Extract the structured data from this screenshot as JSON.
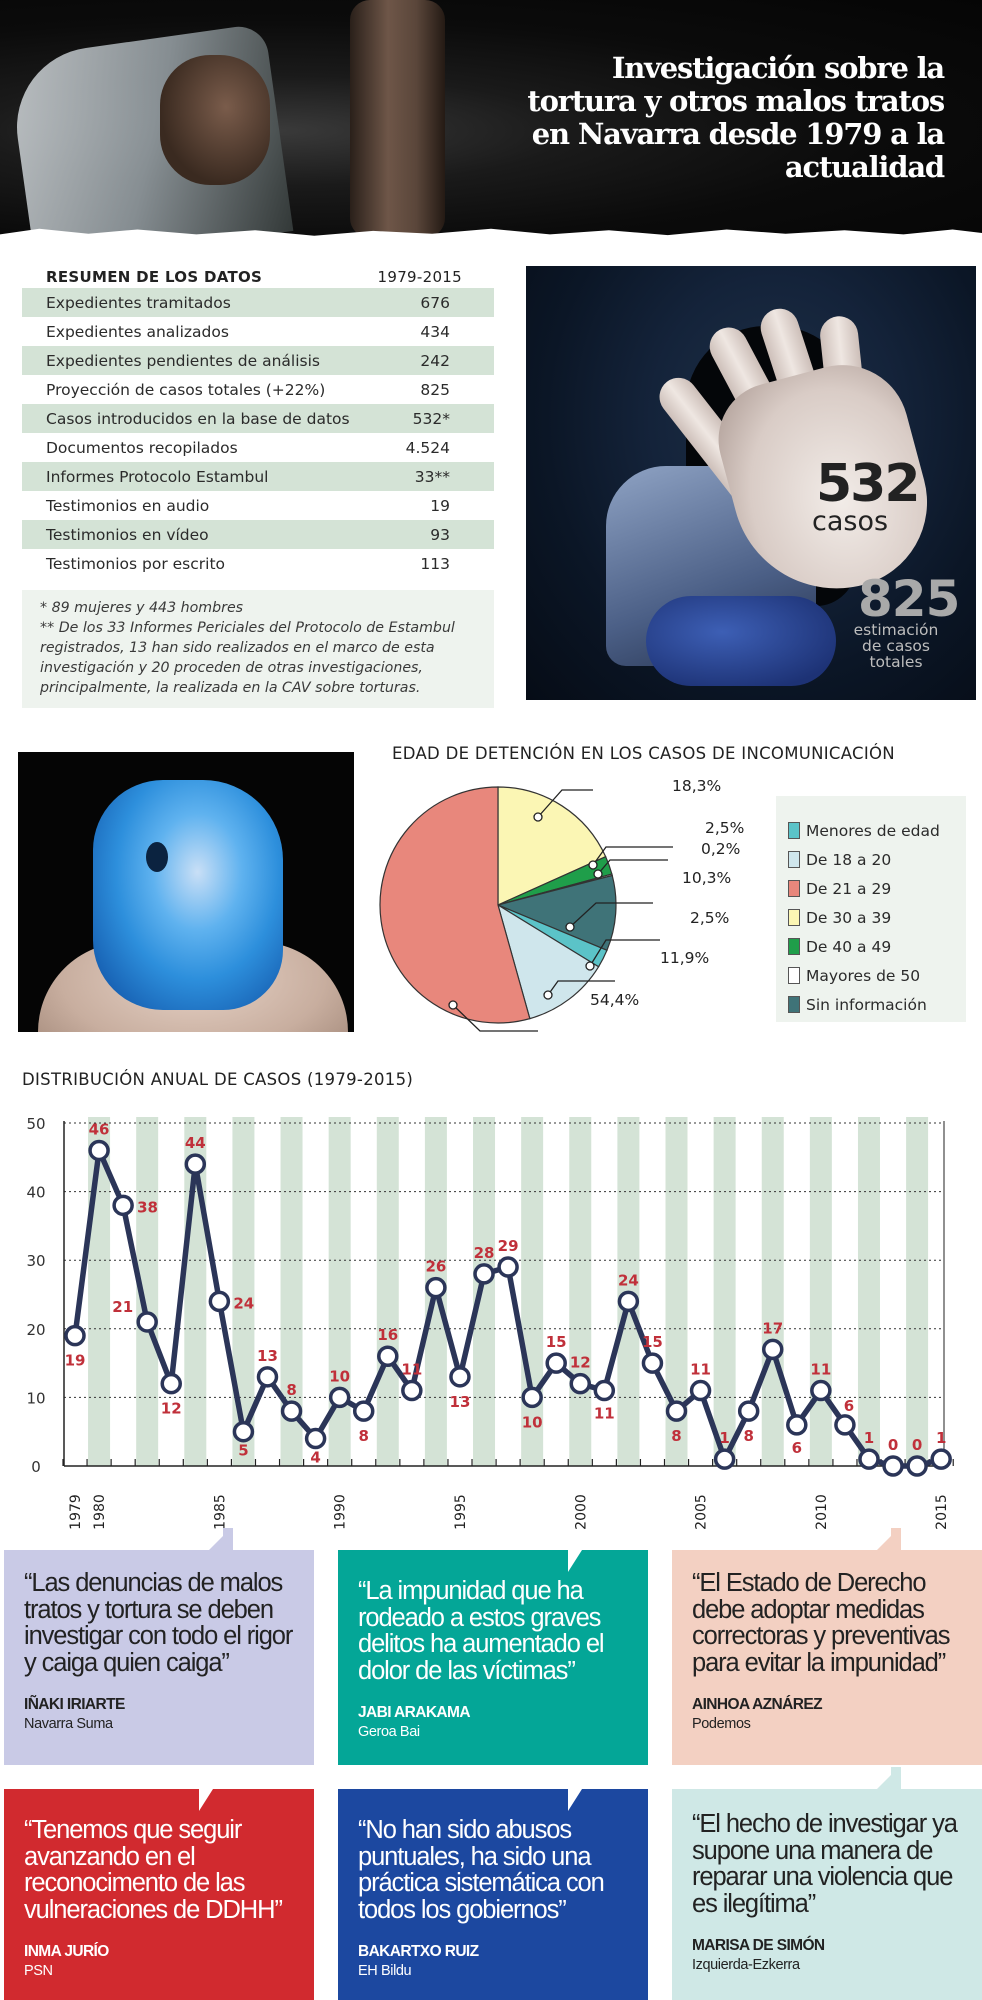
{
  "header": {
    "title": "Investigación sobre la tortura y otros malos tratos en Navarra desde 1979 a la actualidad"
  },
  "summary": {
    "title": "RESUMEN DE LOS DATOS",
    "period": "1979-2015",
    "rows": [
      {
        "label": "Expedientes tramitados",
        "value": "676"
      },
      {
        "label": "Expedientes analizados",
        "value": "434"
      },
      {
        "label": "Expedientes pendientes de análisis",
        "value": "242"
      },
      {
        "label": "Proyección de casos totales (+22%)",
        "value": "825"
      },
      {
        "label": "Casos introducidos en la base de datos",
        "value": "532*"
      },
      {
        "label": "Documentos recopilados",
        "value": "4.524"
      },
      {
        "label": "Informes Protocolo Estambul",
        "value": "33**"
      },
      {
        "label": "Testimonios en audio",
        "value": "19"
      },
      {
        "label": "Testimonios en vídeo",
        "value": "93"
      },
      {
        "label": "Testimonios por escrito",
        "value": "113"
      }
    ],
    "notes": [
      "* 89 mujeres y 443 hombres",
      "** De los 33 Informes Periciales del Protocolo de Estambul registrados, 13 han sido realizados en el marco de esta investigación y 20 proceden de otras investigaciones, principalmente, la realizada en la CAV sobre torturas."
    ]
  },
  "highlight": {
    "cases_number": "532",
    "cases_label": "casos",
    "estimate_number": "825",
    "estimate_label": "estimación de casos totales"
  },
  "colors": {
    "table_shade": "#d4e3d6",
    "line": "#2b3558",
    "label_red": "#c0303a",
    "band": "#d4e3d6"
  },
  "chart_data": [
    {
      "type": "pie",
      "title": "EDAD DE DETENCIÓN EN LOS CASOS DE INCOMUNICACIÓN",
      "legend_position": "right",
      "slices": [
        {
          "label": "De 30 a 39",
          "value": 18.3,
          "display": "18,3%",
          "color": "#fbf6b4"
        },
        {
          "label": "De 40 a 49",
          "value": 2.5,
          "display": "2,5%",
          "color": "#1f9e4a"
        },
        {
          "label": "Mayores de 50",
          "value": 0.2,
          "display": "0,2%",
          "color": "#ffffff"
        },
        {
          "label": "Sin información",
          "value": 10.3,
          "display": "10,3%",
          "color": "#3f7378"
        },
        {
          "label": "Menores de edad",
          "value": 2.5,
          "display": "2,5%",
          "color": "#5bc3c8"
        },
        {
          "label": "De 18 a 20",
          "value": 11.9,
          "display": "11,9%",
          "color": "#cfe6ec"
        },
        {
          "label": "De 21 a 29",
          "value": 54.4,
          "display": "54,4%",
          "color": "#e8877c"
        }
      ],
      "legend": [
        {
          "label": "Menores de edad",
          "color": "#5bc3c8"
        },
        {
          "label": "De 18 a 20",
          "color": "#cfe6ec"
        },
        {
          "label": "De 21 a 29",
          "color": "#e8877c"
        },
        {
          "label": "De 30 a 39",
          "color": "#fbf6b4"
        },
        {
          "label": "De 40 a 49",
          "color": "#1f9e4a"
        },
        {
          "label": "Mayores de 50",
          "color": "#ffffff"
        },
        {
          "label": "Sin información",
          "color": "#3f7378"
        }
      ]
    },
    {
      "type": "line",
      "title": "DISTRIBUCIÓN ANUAL DE CASOS (1979-2015)",
      "xlabel": "",
      "ylabel": "",
      "ylim": [
        0,
        50
      ],
      "yticks": [
        0,
        10,
        20,
        30,
        40,
        50
      ],
      "xtick_labels": [
        "1979",
        "1980",
        "1985",
        "1990",
        "1995",
        "2000",
        "2005",
        "2010",
        "2015"
      ],
      "grid": "horizontal dotted, alternating vertical bands",
      "x": [
        1979,
        1980,
        1981,
        1982,
        1983,
        1984,
        1985,
        1986,
        1987,
        1988,
        1989,
        1990,
        1991,
        1992,
        1993,
        1994,
        1995,
        1996,
        1997,
        1998,
        1999,
        2000,
        2001,
        2002,
        2003,
        2004,
        2005,
        2006,
        2007,
        2008,
        2009,
        2010,
        2011,
        2012,
        2013,
        2014,
        2015
      ],
      "series": [
        {
          "name": "Casos",
          "values": [
            19,
            46,
            38,
            21,
            12,
            44,
            24,
            5,
            13,
            8,
            4,
            10,
            8,
            16,
            11,
            26,
            13,
            28,
            29,
            10,
            15,
            12,
            11,
            24,
            15,
            8,
            11,
            1,
            8,
            17,
            6,
            11,
            6,
            1,
            0,
            0,
            1
          ]
        }
      ]
    }
  ],
  "quotes": [
    {
      "text": "“Las denuncias de malos tratos y tortura se deben investigar con todo el rigor y caiga quien caiga”",
      "name": "IÑAKI IRIARTE",
      "party": "Navarra Suma",
      "bg": "#c9cae6",
      "fg": "#222222"
    },
    {
      "text": "“La impunidad que ha rodeado a estos graves delitos ha aumentado el dolor de las víctimas”",
      "name": "JABI ARAKAMA",
      "party": "Geroa Bai",
      "bg": "#04a697",
      "fg": "#ffffff"
    },
    {
      "text": "“El Estado de Derecho debe adoptar medidas correctoras y preventivas para evitar la impunidad”",
      "name": "AINHOA AZNÁREZ",
      "party": "Podemos",
      "bg": "#f3d0c2",
      "fg": "#222222"
    },
    {
      "text": "“Tenemos que seguir avanzando en el reconocimento de las vulneraciones de DDHH”",
      "name": "INMA JURÍO",
      "party": "PSN",
      "bg": "#d12a2f",
      "fg": "#ffffff"
    },
    {
      "text": "“No han sido abusos puntuales, ha sido una práctica sistemática con todos los gobiernos”",
      "name": "BAKARTXO RUIZ",
      "party": "EH Bildu",
      "bg": "#1c48a0",
      "fg": "#ffffff"
    },
    {
      "text": "“El hecho de investigar ya supone una manera de reparar una violencia que es ilegítima”",
      "name": "MARISA DE SIMÓN",
      "party": "Izquierda-Ezkerra",
      "bg": "#cfe8e6",
      "fg": "#222222"
    }
  ]
}
